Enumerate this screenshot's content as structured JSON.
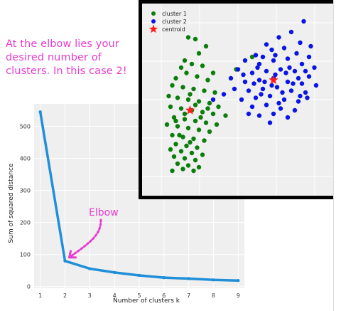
{
  "annotation": {
    "lines": [
      "At the elbow lies your",
      "desired number of",
      "clusters. In this case 2!"
    ],
    "color": "#e83bd0"
  },
  "chart_data": [
    {
      "type": "line",
      "title": "",
      "xlabel": "Number of clusters k",
      "ylabel": "Sum of squared distance",
      "x": [
        1,
        2,
        3,
        4,
        5,
        6,
        7,
        8,
        9
      ],
      "y": [
        545,
        80,
        56,
        44,
        35,
        28,
        25,
        21,
        19
      ],
      "xlim": [
        0.75,
        9.25
      ],
      "ylim": [
        -5,
        570
      ],
      "xticks": [
        1,
        2,
        3,
        4,
        5,
        6,
        7,
        8,
        9
      ],
      "yticks": [
        0,
        100,
        200,
        300,
        400,
        500
      ],
      "grid": true,
      "line_color": "#1f8fd8",
      "background": "#efefef",
      "callout": {
        "text": "Elbow",
        "target_x": 2,
        "target_y": 80,
        "color": "#e83bd0"
      }
    },
    {
      "type": "scatter",
      "legend_position": "top-left",
      "grid": true,
      "background": "#efefef",
      "xlim": [
        0,
        10
      ],
      "ylim": [
        0,
        10
      ],
      "series": [
        {
          "name": "cluster 1",
          "color": "#0a7d0a",
          "marker": "circle",
          "points": [
            [
              2.2,
              8.5
            ],
            [
              2.6,
              8.4
            ],
            [
              3.2,
              8.0
            ],
            [
              2.0,
              7.2
            ],
            [
              2.8,
              7.6
            ],
            [
              1.8,
              6.8
            ],
            [
              2.4,
              7.0
            ],
            [
              3.0,
              6.9
            ],
            [
              3.6,
              6.5
            ],
            [
              1.5,
              6.2
            ],
            [
              2.1,
              6.5
            ],
            [
              2.7,
              6.3
            ],
            [
              3.3,
              6.1
            ],
            [
              1.3,
              5.8
            ],
            [
              1.9,
              5.7
            ],
            [
              2.5,
              5.6
            ],
            [
              3.1,
              5.5
            ],
            [
              3.7,
              5.4
            ],
            [
              1.1,
              5.2
            ],
            [
              1.6,
              5.1
            ],
            [
              2.2,
              5.0
            ],
            [
              2.8,
              4.9
            ],
            [
              3.4,
              4.8
            ],
            [
              1.2,
              4.6
            ],
            [
              1.8,
              4.5
            ],
            [
              2.4,
              4.4
            ],
            [
              3.0,
              4.3
            ],
            [
              3.6,
              4.2
            ],
            [
              1.4,
              4.0
            ],
            [
              2.0,
              3.9
            ],
            [
              2.6,
              3.8
            ],
            [
              3.2,
              3.7
            ],
            [
              1.0,
              3.6
            ],
            [
              1.6,
              3.5
            ],
            [
              2.2,
              3.4
            ],
            [
              2.8,
              3.3
            ],
            [
              3.4,
              3.2
            ],
            [
              1.3,
              3.0
            ],
            [
              1.9,
              2.9
            ],
            [
              2.5,
              2.8
            ],
            [
              3.1,
              2.7
            ],
            [
              1.5,
              2.5
            ],
            [
              2.1,
              2.4
            ],
            [
              2.7,
              2.3
            ],
            [
              1.2,
              2.2
            ],
            [
              1.8,
              2.1
            ],
            [
              2.4,
              2.0
            ],
            [
              3.0,
              1.9
            ],
            [
              1.4,
              1.8
            ],
            [
              2.0,
              1.7
            ],
            [
              2.6,
              1.6
            ],
            [
              1.6,
              1.4
            ],
            [
              2.2,
              1.3
            ],
            [
              2.8,
              1.2
            ],
            [
              1.9,
              1.1
            ],
            [
              2.5,
              1.0
            ],
            [
              1.3,
              1.0
            ],
            [
              3.9,
              4.6
            ],
            [
              4.3,
              4.1
            ],
            [
              3.8,
              3.6
            ],
            [
              4.9,
              6.7
            ],
            [
              5.8,
              7.4
            ],
            [
              2.3,
              5.3
            ],
            [
              2.9,
              4.0
            ],
            [
              1.7,
              3.0
            ],
            [
              2.3,
              2.6
            ],
            [
              2.6,
              4.7
            ],
            [
              2.0,
              4.2
            ],
            [
              3.3,
              4.5
            ],
            [
              1.5,
              3.8
            ]
          ]
        },
        {
          "name": "cluster 2",
          "color": "#0a14e6",
          "marker": "circle",
          "points": [
            [
              8.7,
              9.4
            ],
            [
              8.0,
              8.8
            ],
            [
              7.3,
              8.5
            ],
            [
              6.6,
              8.1
            ],
            [
              8.5,
              8.2
            ],
            [
              6.0,
              7.5
            ],
            [
              6.9,
              7.8
            ],
            [
              7.6,
              7.9
            ],
            [
              8.3,
              7.6
            ],
            [
              9.0,
              7.4
            ],
            [
              5.4,
              7.2
            ],
            [
              6.2,
              7.0
            ],
            [
              7.0,
              7.2
            ],
            [
              7.8,
              7.3
            ],
            [
              8.6,
              7.0
            ],
            [
              9.3,
              6.8
            ],
            [
              5.0,
              6.7
            ],
            [
              5.8,
              6.5
            ],
            [
              6.6,
              6.6
            ],
            [
              7.4,
              6.7
            ],
            [
              8.2,
              6.6
            ],
            [
              9.0,
              6.3
            ],
            [
              4.6,
              6.2
            ],
            [
              5.4,
              6.0
            ],
            [
              6.2,
              6.1
            ],
            [
              7.0,
              6.2
            ],
            [
              7.8,
              6.0
            ],
            [
              8.6,
              5.9
            ],
            [
              9.4,
              5.8
            ],
            [
              4.8,
              5.6
            ],
            [
              5.6,
              5.5
            ],
            [
              6.4,
              5.6
            ],
            [
              7.2,
              5.7
            ],
            [
              8.0,
              5.5
            ],
            [
              8.8,
              5.4
            ],
            [
              5.2,
              5.0
            ],
            [
              6.0,
              5.1
            ],
            [
              6.8,
              5.2
            ],
            [
              7.6,
              5.0
            ],
            [
              8.4,
              4.9
            ],
            [
              5.8,
              4.6
            ],
            [
              6.6,
              4.7
            ],
            [
              7.4,
              4.5
            ],
            [
              8.2,
              4.4
            ],
            [
              6.2,
              4.1
            ],
            [
              7.0,
              4.2
            ],
            [
              7.8,
              4.0
            ],
            [
              6.8,
              3.7
            ],
            [
              6.5,
              6.0
            ],
            [
              7.1,
              6.4
            ],
            [
              7.7,
              6.5
            ],
            [
              8.4,
              6.2
            ],
            [
              5.9,
              5.9
            ],
            [
              6.9,
              5.8
            ],
            [
              7.5,
              5.4
            ],
            [
              8.1,
              5.9
            ],
            [
              6.3,
              5.3
            ],
            [
              7.9,
              6.8
            ],
            [
              8.8,
              6.6
            ],
            [
              5.3,
              6.4
            ],
            [
              4.2,
              5.3
            ],
            [
              3.6,
              5.0
            ],
            [
              9.1,
              8.0
            ],
            [
              7.1,
              7.5
            ],
            [
              6.4,
              7.4
            ],
            [
              8.9,
              5.1
            ],
            [
              5.6,
              4.2
            ],
            [
              7.3,
              4.8
            ],
            [
              6.1,
              6.8
            ],
            [
              8.5,
              5.2
            ]
          ]
        },
        {
          "name": "centroid",
          "color": "#ff1c1c",
          "marker": "star",
          "points": [
            [
              2.3,
              4.4
            ],
            [
              7.0,
              6.1
            ]
          ]
        }
      ]
    }
  ]
}
